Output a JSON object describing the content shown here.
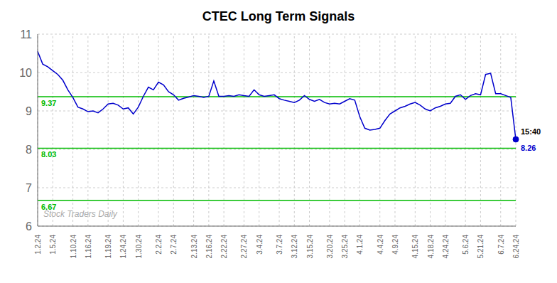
{
  "chart_data": {
    "type": "line",
    "title": "CTEC Long Term Signals",
    "color": "#0000cc",
    "grid": true,
    "ylim": [
      6,
      11
    ],
    "yticks": [
      6,
      7,
      8,
      9,
      10,
      11
    ],
    "categories": [
      "1.2.24",
      null,
      null,
      "1.5.24",
      null,
      null,
      null,
      "1.10.24",
      null,
      null,
      "1.16.24",
      null,
      null,
      null,
      "1.19.24",
      null,
      null,
      "1.24.24",
      null,
      null,
      "1.30.24",
      null,
      null,
      null,
      "2.2.24",
      null,
      null,
      "2.7.24",
      null,
      null,
      null,
      "2.13.24",
      null,
      null,
      "2.16.24",
      null,
      null,
      "2.22.24",
      null,
      null,
      null,
      "2.27.24",
      null,
      null,
      "3.4.24",
      null,
      null,
      null,
      "3.7.24",
      null,
      null,
      "3.12.24",
      null,
      null,
      "3.15.24",
      null,
      null,
      null,
      "3.20.24",
      null,
      null,
      "3.25.24",
      null,
      null,
      "4.1.24",
      null,
      null,
      null,
      "4.4.24",
      null,
      null,
      "4.9.24",
      null,
      null,
      null,
      "4.15.24",
      null,
      null,
      "4.18.24",
      null,
      null,
      "4.24.24",
      null,
      null,
      null,
      "5.6.24",
      null,
      null,
      "5.21.24",
      null,
      null,
      null,
      "6.7.24",
      null,
      null,
      "6.24.24"
    ],
    "values": [
      10.55,
      10.22,
      10.15,
      10.05,
      9.95,
      9.8,
      9.55,
      9.35,
      9.1,
      9.05,
      8.98,
      9.0,
      8.95,
      9.05,
      9.18,
      9.2,
      9.15,
      9.05,
      9.08,
      8.92,
      9.1,
      9.38,
      9.62,
      9.55,
      9.75,
      9.68,
      9.5,
      9.42,
      9.28,
      9.33,
      9.36,
      9.4,
      9.38,
      9.35,
      9.38,
      9.78,
      9.38,
      9.38,
      9.4,
      9.38,
      9.42,
      9.4,
      9.38,
      9.55,
      9.42,
      9.38,
      9.4,
      9.42,
      9.32,
      9.28,
      9.25,
      9.22,
      9.28,
      9.4,
      9.3,
      9.25,
      9.3,
      9.22,
      9.18,
      9.2,
      9.18,
      9.25,
      9.32,
      9.28,
      8.85,
      8.55,
      8.5,
      8.52,
      8.55,
      8.75,
      8.92,
      9.0,
      9.08,
      9.12,
      9.18,
      9.22,
      9.15,
      9.05,
      9.0,
      9.08,
      9.12,
      9.18,
      9.2,
      9.38,
      9.42,
      9.3,
      9.4,
      9.45,
      9.42,
      9.95,
      9.98,
      9.45,
      9.45,
      9.4,
      9.35,
      8.26
    ],
    "annotations": [
      {
        "type": "hline",
        "y": 9.37,
        "text": "9.37",
        "color": "#00bb00"
      },
      {
        "type": "hline",
        "y": 8.03,
        "text": "8.03",
        "color": "#00bb00"
      },
      {
        "type": "hline",
        "y": 6.67,
        "text": "6.67",
        "color": "#00bb00"
      },
      {
        "type": "end_point",
        "x": 95,
        "y": 8.26,
        "time": "15:40",
        "value_label": "8.26",
        "color": "#0000cc"
      },
      {
        "type": "watermark",
        "text": "Stock Traders Daily",
        "color": "#aaaaaa"
      }
    ]
  }
}
